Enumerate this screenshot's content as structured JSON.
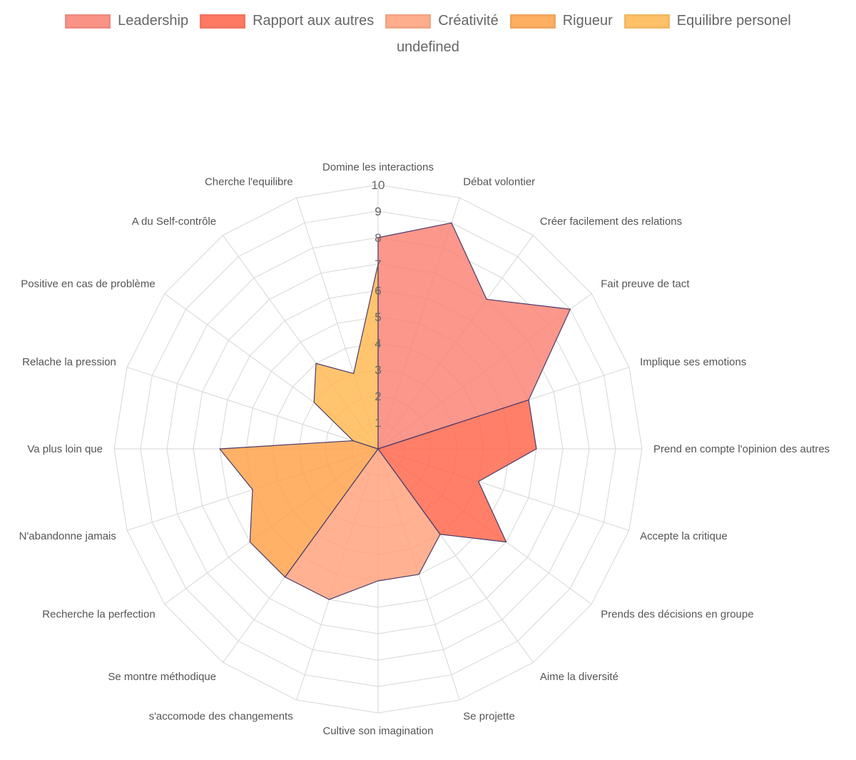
{
  "chart_data": {
    "type": "radar",
    "legend_extra": "undefined",
    "labels": [
      "Domine les interactions",
      "Débat volontier",
      "Créer facilement des relations",
      "Fait preuve de tact",
      "Implique ses emotions",
      "Prend en compte l'opinion des autres",
      "Accepte la critique",
      "Prends des décisions en groupe",
      "Aime la diversité",
      "Se projette",
      "Cultive son imagination",
      "s'accomode des changements",
      "Se montre méthodique",
      "Recherche la perfection",
      "N'abandonne jamais",
      "Va plus loin que",
      "Relache la pression",
      "Positive en cas de problème",
      "A du Self-contrôle",
      "Cherche l'equilibre"
    ],
    "rmin": 0,
    "rmax": 10,
    "ticks": [
      "1",
      "2",
      "3",
      "4",
      "5",
      "6",
      "7",
      "8",
      "9",
      "10"
    ],
    "series": [
      {
        "name": "Leadership",
        "color": "#fa8072",
        "values": [
          8,
          9,
          7,
          9,
          6,
          0,
          0,
          0,
          0,
          0,
          0,
          0,
          0,
          0,
          0,
          0,
          0,
          0,
          0,
          0
        ]
      },
      {
        "name": "Rapport aux autres",
        "color": "#ff6347",
        "values": [
          0,
          0,
          0,
          0,
          6,
          6,
          4,
          6,
          4,
          0,
          0,
          0,
          0,
          0,
          0,
          0,
          0,
          0,
          0,
          0
        ]
      },
      {
        "name": "Créativité",
        "color": "#ffa07a",
        "values": [
          0,
          0,
          0,
          0,
          0,
          0,
          0,
          0,
          4,
          5,
          5,
          6,
          6,
          0,
          0,
          0,
          0,
          0,
          0,
          0
        ]
      },
      {
        "name": "Rigueur",
        "color": "#ffa047",
        "values": [
          0,
          0,
          0,
          0,
          0,
          0,
          0,
          0,
          0,
          0,
          0,
          0,
          6,
          6,
          5,
          6,
          1,
          0,
          0,
          0
        ]
      },
      {
        "name": "Equilibre personel",
        "color": "#ffb74d",
        "values": [
          7,
          0,
          0,
          0,
          0,
          0,
          0,
          0,
          0,
          0,
          0,
          0,
          0,
          0,
          0,
          0,
          1,
          3,
          4,
          3
        ]
      }
    ]
  }
}
